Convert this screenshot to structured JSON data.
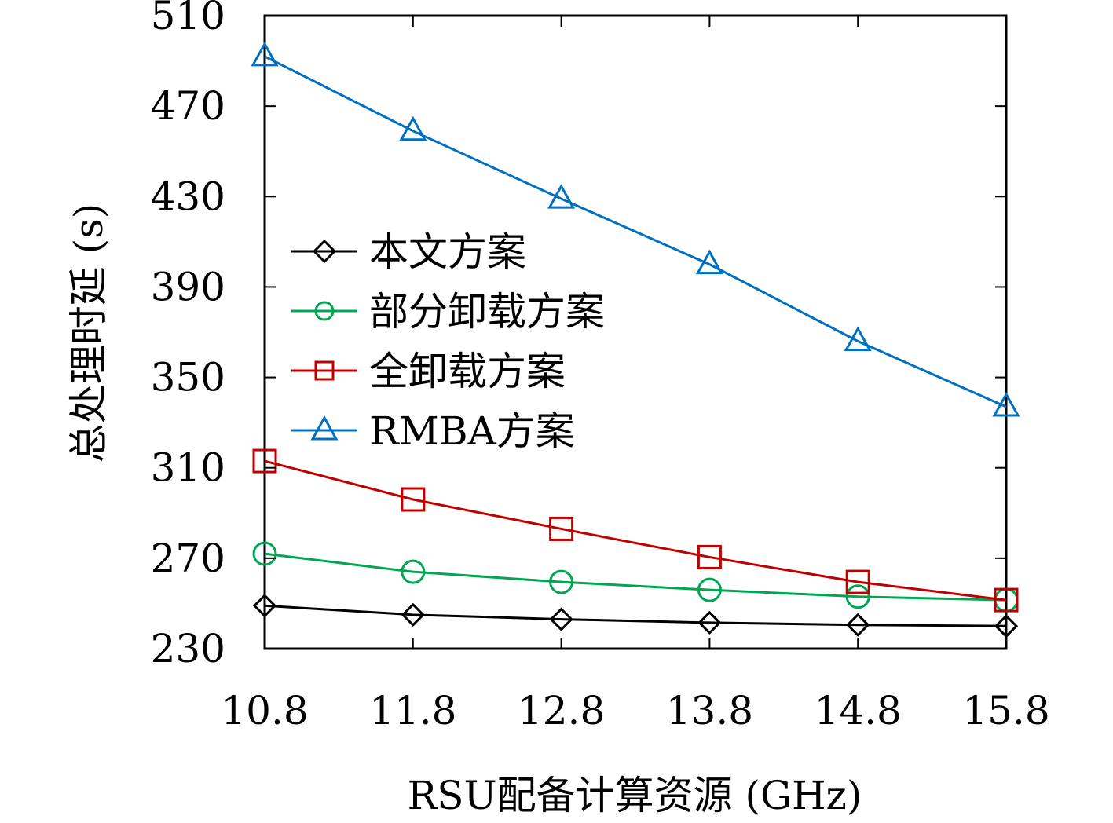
{
  "chart_data": {
    "type": "line",
    "xlabel": "RSU配备计算资源 (GHz)",
    "ylabel": "总处理时延 (s)",
    "x": [
      10.8,
      11.8,
      12.8,
      13.8,
      14.8,
      15.8
    ],
    "x_tick_labels": [
      "10.8",
      "11.8",
      "12.8",
      "13.8",
      "14.8",
      "15.8"
    ],
    "ylim": [
      230,
      510
    ],
    "y_ticks": [
      230,
      270,
      310,
      350,
      390,
      430,
      470,
      510
    ],
    "y_tick_labels": [
      "230",
      "270",
      "310",
      "350",
      "390",
      "430",
      "470",
      "510"
    ],
    "grid": false,
    "legend_position": "center-left",
    "series": [
      {
        "name": "本文方案",
        "color": "#000000",
        "marker": "diamond",
        "values": [
          249,
          245,
          243,
          241.5,
          240.5,
          240
        ]
      },
      {
        "name": "部分卸载方案",
        "color": "#00a651",
        "marker": "circle",
        "values": [
          272,
          264,
          259.5,
          256,
          253,
          251.5
        ]
      },
      {
        "name": "全卸载方案",
        "color": "#c00000",
        "marker": "square",
        "values": [
          313,
          296,
          283,
          270.5,
          259.5,
          251.5
        ]
      },
      {
        "name": "RMBA方案",
        "color": "#0070c0",
        "marker": "triangle",
        "values": [
          492,
          459,
          429,
          400,
          366,
          337
        ]
      }
    ]
  }
}
